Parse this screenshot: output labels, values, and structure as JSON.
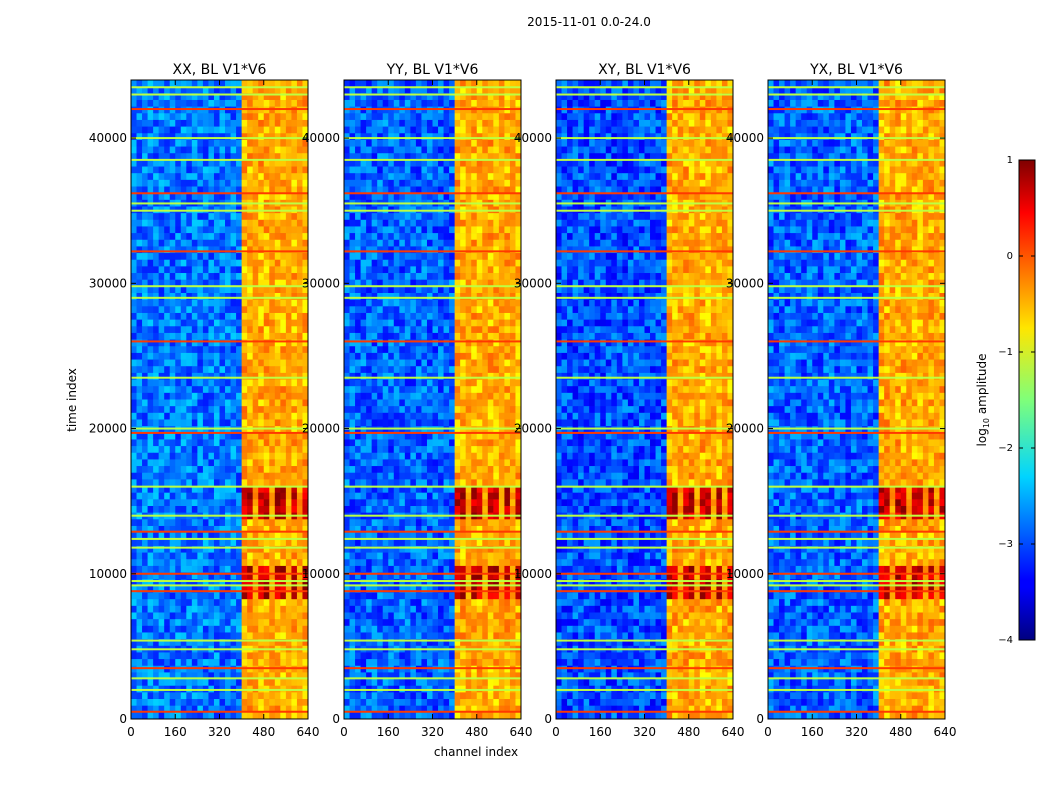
{
  "figure_title": "2015-11-01 0.0-24.0",
  "chart_data": {
    "type": "heatmap",
    "title": "2015-11-01 0.0-24.0",
    "xlabel": "channel index",
    "ylabel": "time index",
    "xlim": [
      0,
      640
    ],
    "ylim": [
      0,
      44000
    ],
    "xticks": [
      "0",
      "160",
      "320",
      "480",
      "640"
    ],
    "xtick_values": [
      0,
      160,
      320,
      480,
      640
    ],
    "yticks": [
      "0",
      "10000",
      "20000",
      "30000",
      "40000"
    ],
    "ytick_values": [
      0,
      10000,
      20000,
      30000,
      40000
    ],
    "colormap": "jet",
    "colorbar": {
      "label": "log10 amplitude",
      "label_main": "log",
      "label_sub": "10",
      "label_rest": " amplitude",
      "range": [
        -4,
        1
      ],
      "ticks": [
        "1",
        "0",
        "−1",
        "−2",
        "−3",
        "−4"
      ],
      "tick_values": [
        1,
        0,
        -1,
        -2,
        -3,
        -4
      ]
    },
    "panels": [
      {
        "title": "XX, BL V1*V6",
        "background_level": -2.8,
        "band_channels": [
          410,
          640
        ],
        "strong_rows": [
          9500,
          15000
        ]
      },
      {
        "title": "YY, BL V1*V6",
        "background_level": -2.9,
        "band_channels": [
          410,
          640
        ],
        "strong_rows": [
          9500,
          15000
        ]
      },
      {
        "title": "XY, BL V1*V6",
        "background_level": -3.0,
        "band_channels": [
          410,
          640
        ],
        "strong_rows": [
          9500,
          15000
        ]
      },
      {
        "title": "YX, BL V1*V6",
        "background_level": -2.9,
        "band_channels": [
          410,
          640
        ],
        "strong_rows": [
          9500,
          15000
        ]
      }
    ],
    "rfi_rows": [
      500,
      2000,
      2800,
      3500,
      4800,
      5400,
      8800,
      9200,
      9500,
      10000,
      11800,
      12400,
      12900,
      14000,
      16000,
      19700,
      20000,
      23500,
      26000,
      29000,
      29800,
      32200,
      35000,
      35500,
      36200,
      38500,
      40000,
      42000,
      43000,
      43500
    ]
  },
  "colors": {
    "background": "#ffffff",
    "axis": "#000000"
  }
}
